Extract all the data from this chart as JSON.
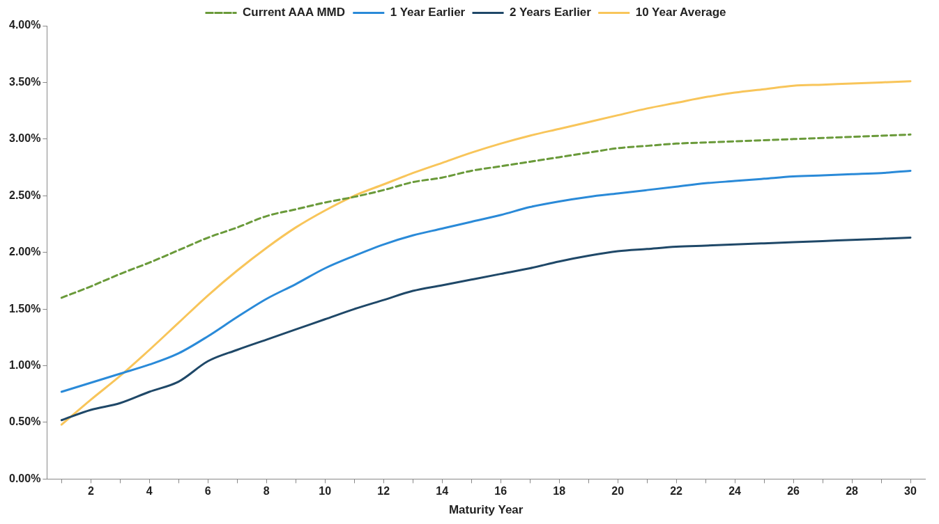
{
  "chart_data": {
    "type": "line",
    "xlabel": "Maturity Year",
    "x": [
      1,
      2,
      3,
      4,
      5,
      6,
      7,
      8,
      9,
      10,
      11,
      12,
      13,
      14,
      15,
      16,
      17,
      18,
      19,
      20,
      21,
      22,
      23,
      24,
      25,
      26,
      27,
      28,
      29,
      30
    ],
    "xlim": [
      0.5,
      30.5
    ],
    "xticks": [
      {
        "value": 1,
        "label": null
      },
      2,
      {
        "value": 3,
        "label": null
      },
      4,
      {
        "value": 5,
        "label": null
      },
      6,
      {
        "value": 7,
        "label": null
      },
      8,
      {
        "value": 9,
        "label": null
      },
      10,
      {
        "value": 11,
        "label": null
      },
      12,
      {
        "value": 13,
        "label": null
      },
      14,
      {
        "value": 15,
        "label": null
      },
      16,
      {
        "value": 17,
        "label": null
      },
      18,
      {
        "value": 19,
        "label": null
      },
      20,
      {
        "value": 21,
        "label": null
      },
      22,
      {
        "value": 23,
        "label": null
      },
      24,
      {
        "value": 25,
        "label": null
      },
      26,
      {
        "value": 27,
        "label": null
      },
      28,
      {
        "value": 29,
        "label": null
      },
      30
    ],
    "ylim": [
      0,
      4
    ],
    "yticks": [
      {
        "value": 0,
        "label": "0.00%"
      },
      {
        "value": 0.5,
        "label": "0.50%"
      },
      {
        "value": 1,
        "label": "1.00%"
      },
      {
        "value": 1.5,
        "label": "1.50%"
      },
      {
        "value": 2,
        "label": "2.00%"
      },
      {
        "value": 2.5,
        "label": "2.50%"
      },
      {
        "value": 3,
        "label": "3.00%"
      },
      {
        "value": 3.5,
        "label": "3.50%"
      },
      {
        "value": 4,
        "label": "4.00%"
      }
    ],
    "grid": false,
    "legend": "top",
    "marker": "none",
    "series": [
      {
        "name": "Current AAA MMD",
        "color": "#6a9a3a",
        "line_style": "dashed",
        "values": [
          1.6,
          1.7,
          1.81,
          1.91,
          2.02,
          2.13,
          2.22,
          2.32,
          2.38,
          2.44,
          2.49,
          2.55,
          2.62,
          2.66,
          2.72,
          2.76,
          2.8,
          2.84,
          2.88,
          2.92,
          2.94,
          2.96,
          2.97,
          2.98,
          2.99,
          3.0,
          3.01,
          3.02,
          3.03,
          3.04
        ]
      },
      {
        "name": "1 Year Earlier",
        "color": "#2a8ad8",
        "line_style": "solid",
        "values": [
          0.77,
          0.85,
          0.93,
          1.01,
          1.11,
          1.26,
          1.43,
          1.59,
          1.72,
          1.86,
          1.97,
          2.07,
          2.15,
          2.21,
          2.27,
          2.33,
          2.4,
          2.45,
          2.49,
          2.52,
          2.55,
          2.58,
          2.61,
          2.63,
          2.65,
          2.67,
          2.68,
          2.69,
          2.7,
          2.72
        ]
      },
      {
        "name": "2 Years Earlier",
        "color": "#1f4868",
        "line_style": "solid",
        "values": [
          0.52,
          0.61,
          0.67,
          0.77,
          0.86,
          1.04,
          1.14,
          1.23,
          1.32,
          1.41,
          1.5,
          1.58,
          1.66,
          1.71,
          1.76,
          1.81,
          1.86,
          1.92,
          1.97,
          2.01,
          2.03,
          2.05,
          2.06,
          2.07,
          2.08,
          2.09,
          2.1,
          2.11,
          2.12,
          2.13
        ]
      },
      {
        "name": "10 Year Average",
        "color": "#f8c55a",
        "line_style": "solid",
        "values": [
          0.48,
          0.7,
          0.91,
          1.14,
          1.38,
          1.62,
          1.84,
          2.04,
          2.22,
          2.37,
          2.5,
          2.6,
          2.7,
          2.79,
          2.88,
          2.96,
          3.03,
          3.09,
          3.15,
          3.21,
          3.27,
          3.32,
          3.37,
          3.41,
          3.44,
          3.47,
          3.48,
          3.49,
          3.5,
          3.51
        ]
      }
    ]
  }
}
